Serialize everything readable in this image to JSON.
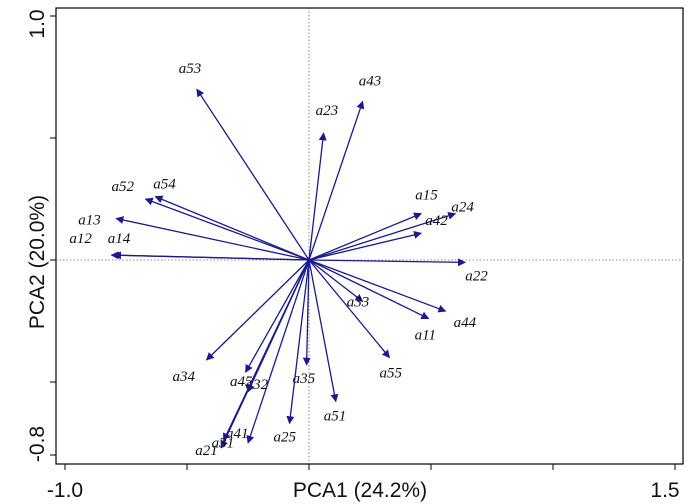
{
  "chart_data": {
    "type": "biplot",
    "xlabel": "PCA1 (24.2%)",
    "ylabel": "PCA2 (20.0%)",
    "xlim": [
      -1.0,
      1.5
    ],
    "ylim": [
      -0.8,
      1.0
    ],
    "x_tick_labels": [
      "-1.0",
      "1.5"
    ],
    "y_tick_labels": [
      "-0.8",
      "1.0"
    ],
    "arrow_color": "#1a1a8c",
    "vectors": [
      {
        "name": "a53",
        "x": -0.46,
        "y": 0.7
      },
      {
        "name": "a43",
        "x": 0.22,
        "y": 0.65
      },
      {
        "name": "a23",
        "x": 0.06,
        "y": 0.52
      },
      {
        "name": "a52",
        "x": -0.67,
        "y": 0.25
      },
      {
        "name": "a54",
        "x": -0.63,
        "y": 0.26
      },
      {
        "name": "a13",
        "x": -0.79,
        "y": 0.17
      },
      {
        "name": "a12",
        "x": -0.81,
        "y": 0.02
      },
      {
        "name": "a14",
        "x": -0.8,
        "y": 0.02
      },
      {
        "name": "a15",
        "x": 0.46,
        "y": 0.19
      },
      {
        "name": "a24",
        "x": 0.6,
        "y": 0.19
      },
      {
        "name": "a42",
        "x": 0.46,
        "y": 0.11
      },
      {
        "name": "a22",
        "x": 0.64,
        "y": -0.01
      },
      {
        "name": "a33",
        "x": 0.22,
        "y": -0.17
      },
      {
        "name": "a11",
        "x": 0.49,
        "y": -0.24
      },
      {
        "name": "a44",
        "x": 0.56,
        "y": -0.21
      },
      {
        "name": "a55",
        "x": 0.33,
        "y": -0.4
      },
      {
        "name": "a34",
        "x": -0.42,
        "y": -0.41
      },
      {
        "name": "a32",
        "x": -0.26,
        "y": -0.46
      },
      {
        "name": "a35",
        "x": -0.01,
        "y": -0.43
      },
      {
        "name": "a51",
        "x": 0.11,
        "y": -0.58
      },
      {
        "name": "a25",
        "x": -0.08,
        "y": -0.67
      },
      {
        "name": "a45",
        "x": -0.25,
        "y": -0.54
      },
      {
        "name": "a41",
        "x": -0.25,
        "y": -0.75
      },
      {
        "name": "a21",
        "x": -0.36,
        "y": -0.77
      },
      {
        "name": "a31",
        "x": -0.35,
        "y": -0.74
      }
    ]
  }
}
